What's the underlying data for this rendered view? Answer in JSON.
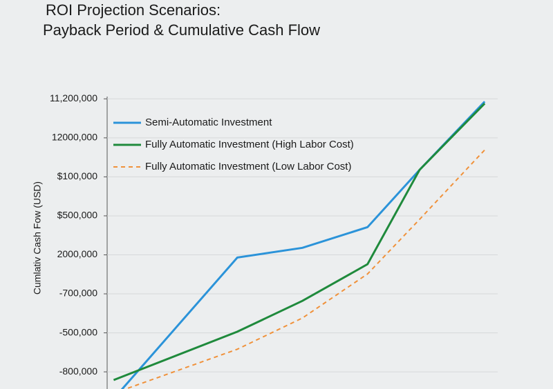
{
  "chart_data": {
    "type": "line",
    "title": "ROI Projection Scenarios:",
    "subtitle": "Payback Period & Cumulative Cash Flow",
    "y_label": "Cumlativ Cash Fow (USD)",
    "x": [
      0.1,
      2,
      3,
      4,
      4.8,
      5.8
    ],
    "xlim": [
      0,
      6
    ],
    "ylim": [
      -0.44,
      7.2
    ],
    "yticks": [
      {
        "value": 0,
        "label": "-800,000"
      },
      {
        "value": 1,
        "label": "-500,000"
      },
      {
        "value": 2,
        "label": "-700,000"
      },
      {
        "value": 3,
        "label": "2000,000"
      },
      {
        "value": 4,
        "label": "$500,000"
      },
      {
        "value": 5,
        "label": "$100,000"
      },
      {
        "value": 6,
        "label": "12000,000"
      },
      {
        "value": 7,
        "label": "11,200,000"
      }
    ],
    "grid": true,
    "legend": "upper left",
    "series": [
      {
        "name": "Semi-Automatic Investment",
        "color": "#2b93d9",
        "dash": false,
        "values": [
          -0.69,
          2.93,
          3.18,
          3.71,
          5.18,
          6.93
        ]
      },
      {
        "name": "Fully Automatic Investment (High Labor Cost)",
        "color": "#1f8a3c",
        "dash": false,
        "values": [
          -0.21,
          1.03,
          1.82,
          2.76,
          5.18,
          6.88
        ]
      },
      {
        "name": "Fully Automatic Investment (Low Labor Cost)",
        "color": "#f0913a",
        "dash": true,
        "values": [
          -0.55,
          0.58,
          1.38,
          2.51,
          3.91,
          5.69
        ]
      }
    ]
  }
}
